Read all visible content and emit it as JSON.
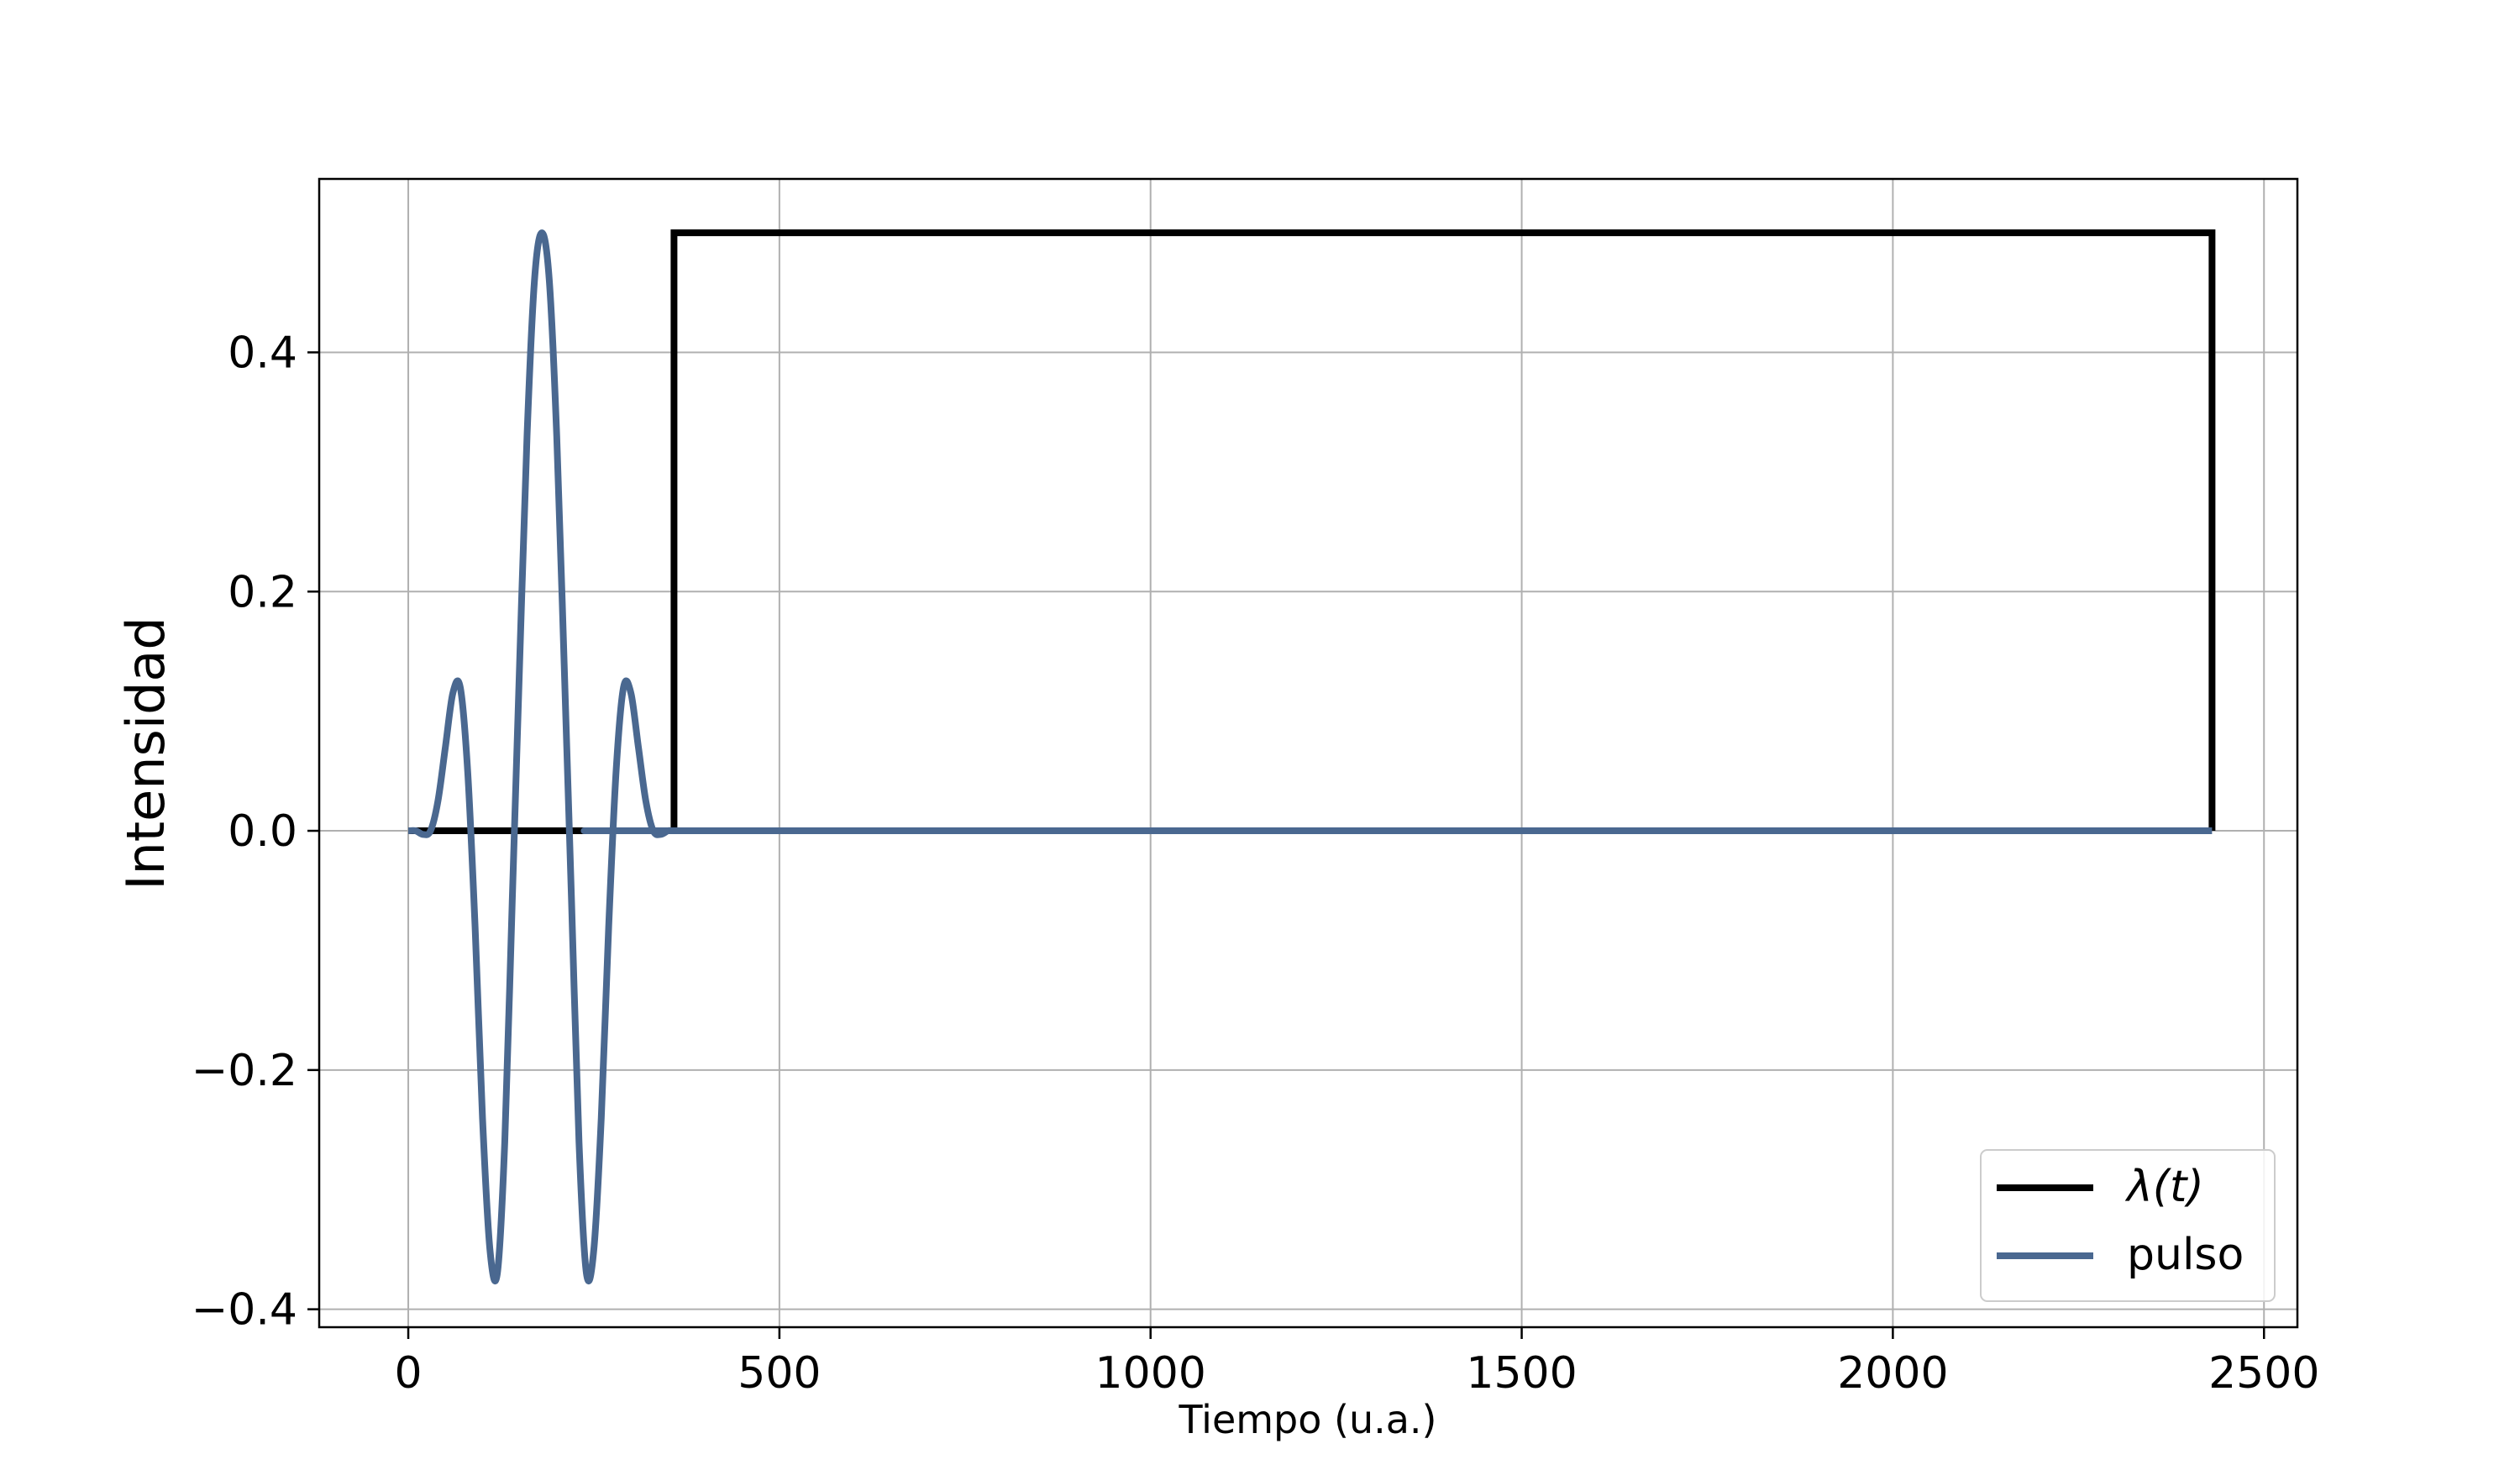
{
  "chart_data": {
    "type": "line",
    "xlabel": "Tiempo (u.a.)",
    "ylabel": "Intensidad",
    "xlim": [
      -120,
      2545
    ],
    "ylim": [
      -0.415,
      0.545
    ],
    "x_ticks": [
      0,
      500,
      1000,
      1500,
      2000,
      2500
    ],
    "x_tick_labels": [
      "0",
      "500",
      "1000",
      "1500",
      "2000",
      "2500"
    ],
    "y_ticks": [
      -0.4,
      -0.2,
      0.0,
      0.2,
      0.4
    ],
    "y_tick_labels": [
      "−0.4",
      "−0.2",
      "0.0",
      "0.2",
      "0.4"
    ],
    "grid": true,
    "legend_position": "lower-right",
    "series": [
      {
        "name": "λ(t)",
        "color": "#000000",
        "x": [
          0,
          358,
          358,
          2430,
          2430
        ],
        "y": [
          0,
          0,
          0.5,
          0.5,
          0
        ]
      },
      {
        "name": "pulso",
        "color": "#4a6890",
        "x": [
          0,
          10,
          20,
          30,
          40,
          50,
          60,
          70,
          80,
          90,
          100,
          110,
          120,
          130,
          140,
          150,
          160,
          170,
          180,
          190,
          200,
          210,
          220,
          230,
          240,
          250,
          260,
          270,
          280,
          290,
          300,
          310,
          320,
          330,
          340,
          350,
          358,
          400,
          2430
        ],
        "y": [
          0.0,
          0.0,
          -0.003,
          0.0,
          0.025,
          0.07,
          0.115,
          0.12,
          0.05,
          -0.08,
          -0.24,
          -0.35,
          -0.37,
          -0.26,
          -0.06,
          0.14,
          0.33,
          0.46,
          0.5,
          0.46,
          0.33,
          0.14,
          -0.06,
          -0.26,
          -0.37,
          -0.35,
          -0.24,
          -0.08,
          0.05,
          0.12,
          0.115,
          0.07,
          0.025,
          0.0,
          -0.003,
          0.0,
          0.0,
          0.0,
          0.0
        ]
      }
    ]
  }
}
